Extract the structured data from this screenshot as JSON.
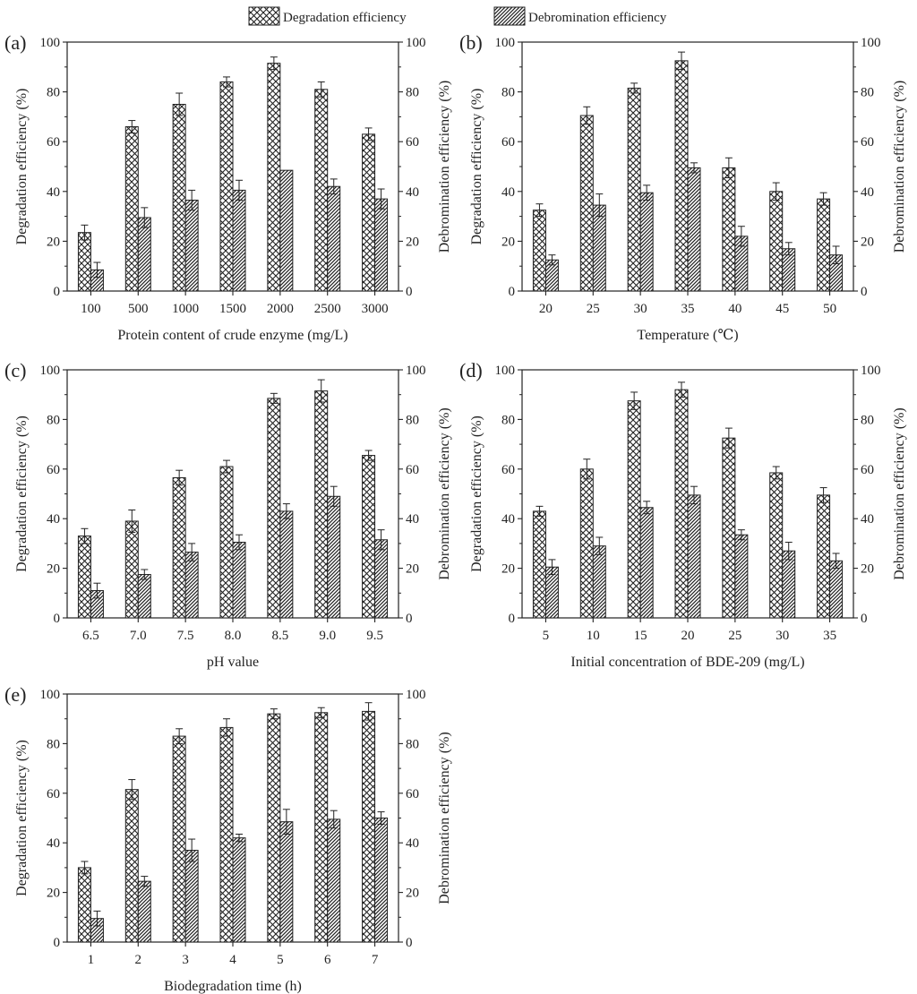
{
  "legend": {
    "degradation": "Degradation efficiency",
    "debromination": "Debromination efficiency"
  },
  "chart_data": [
    {
      "type": "bar",
      "panel_label": "(a)",
      "xlabel": "Protein content of crude enzyme (mg/L)",
      "ylabel_left": "Degradation efficiency (%)",
      "ylabel_right": "Debromination efficiency (%)",
      "ylim": [
        0,
        100
      ],
      "yticks": [
        "0",
        "20",
        "40",
        "60",
        "80",
        "100"
      ],
      "categories": [
        "100",
        "500",
        "1000",
        "1500",
        "2000",
        "2500",
        "3000"
      ],
      "series": [
        {
          "name": "Degradation efficiency",
          "values": [
            23.5,
            66,
            75,
            84,
            91.5,
            81,
            63
          ],
          "errors": [
            3,
            2.5,
            4.5,
            2,
            2.5,
            3,
            2.5
          ]
        },
        {
          "name": "Debromination efficiency",
          "values": [
            8.5,
            29.5,
            36.5,
            40.5,
            48.5,
            42,
            37
          ],
          "errors": [
            3,
            4,
            4,
            4,
            0,
            3,
            4
          ]
        }
      ]
    },
    {
      "type": "bar",
      "panel_label": "(b)",
      "xlabel": "Temperature (℃)",
      "ylabel_left": "Degradation efficiency (%)",
      "ylabel_right": "Debromination efficiency (%)",
      "ylim": [
        0,
        100
      ],
      "yticks": [
        "0",
        "20",
        "40",
        "60",
        "80",
        "100"
      ],
      "categories": [
        "20",
        "25",
        "30",
        "35",
        "40",
        "45",
        "50"
      ],
      "series": [
        {
          "name": "Degradation efficiency",
          "values": [
            32.5,
            70.5,
            81.5,
            92.5,
            49.5,
            40,
            37
          ],
          "errors": [
            2.5,
            3.5,
            2,
            3.5,
            4,
            3.5,
            2.5
          ]
        },
        {
          "name": "Debromination efficiency",
          "values": [
            12.5,
            34.5,
            39.5,
            49.5,
            22,
            17,
            14.5
          ],
          "errors": [
            2,
            4.5,
            3,
            2,
            4,
            2.5,
            3.5
          ]
        }
      ]
    },
    {
      "type": "bar",
      "panel_label": "(c)",
      "xlabel": "pH value",
      "ylabel_left": "Degradation efficiency (%)",
      "ylabel_right": "Debromination efficiency (%)",
      "ylim": [
        0,
        100
      ],
      "yticks": [
        "0",
        "20",
        "40",
        "60",
        "80",
        "100"
      ],
      "categories": [
        "6.5",
        "7.0",
        "7.5",
        "8.0",
        "8.5",
        "9.0",
        "9.5"
      ],
      "series": [
        {
          "name": "Degradation efficiency",
          "values": [
            33,
            39,
            56.5,
            61,
            88.5,
            91.5,
            65.5
          ],
          "errors": [
            3,
            4.5,
            3,
            2.5,
            2,
            4.5,
            2
          ]
        },
        {
          "name": "Debromination efficiency",
          "values": [
            11,
            17.5,
            26.5,
            30.5,
            43,
            49,
            31.5
          ],
          "errors": [
            3,
            2,
            3.5,
            3,
            3,
            4,
            4
          ]
        }
      ]
    },
    {
      "type": "bar",
      "panel_label": "(d)",
      "xlabel": "Initial concentration of BDE-209 (mg/L)",
      "ylabel_left": "Degradation efficiency (%)",
      "ylabel_right": "Debromination efficiency (%)",
      "ylim": [
        0,
        100
      ],
      "yticks": [
        "0",
        "20",
        "40",
        "60",
        "80",
        "100"
      ],
      "categories": [
        "5",
        "10",
        "15",
        "20",
        "25",
        "30",
        "35"
      ],
      "series": [
        {
          "name": "Degradation efficiency",
          "values": [
            43,
            60,
            87.5,
            92,
            72.5,
            58.5,
            49.5
          ],
          "errors": [
            2,
            4,
            3.5,
            3,
            4,
            2.5,
            3
          ]
        },
        {
          "name": "Debromination efficiency",
          "values": [
            20.5,
            29,
            44.5,
            49.5,
            33.5,
            27,
            23
          ],
          "errors": [
            3,
            3.5,
            2.5,
            3.5,
            2,
            3.5,
            3
          ]
        }
      ]
    },
    {
      "type": "bar",
      "panel_label": "(e)",
      "xlabel": "Biodegradation time (h)",
      "ylabel_left": "Degradation efficiency (%)",
      "ylabel_right": "Debromination efficiency (%)",
      "ylim": [
        0,
        100
      ],
      "yticks": [
        "0",
        "20",
        "40",
        "60",
        "80",
        "100"
      ],
      "categories": [
        "1",
        "2",
        "3",
        "4",
        "5",
        "6",
        "7"
      ],
      "series": [
        {
          "name": "Degradation efficiency",
          "values": [
            30,
            61.5,
            83,
            86.5,
            92,
            92.5,
            93
          ],
          "errors": [
            2.5,
            4,
            3,
            3.5,
            2,
            2,
            3.5
          ]
        },
        {
          "name": "Debromination efficiency",
          "values": [
            9.5,
            24.5,
            37,
            42,
            48.5,
            49.5,
            50
          ],
          "errors": [
            3,
            2,
            4.5,
            1.5,
            5,
            3.5,
            2.5
          ]
        }
      ]
    }
  ]
}
